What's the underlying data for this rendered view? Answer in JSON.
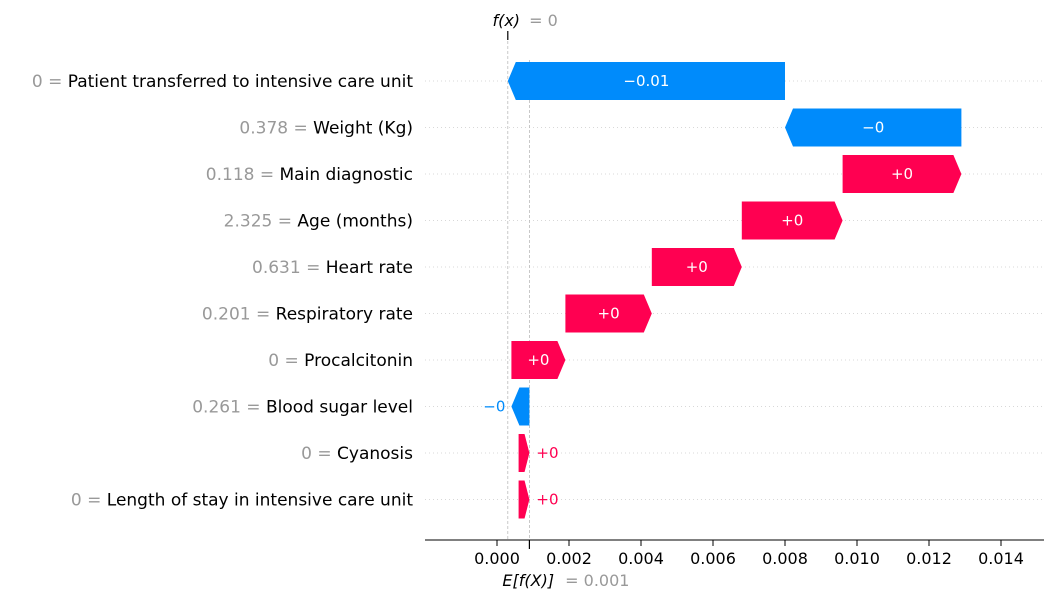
{
  "chart_data": {
    "type": "waterfall",
    "title": "",
    "xlabel": "",
    "ylabel": "",
    "fx_label": "f(x)",
    "fx_value": "= 0",
    "fx": 0.0003,
    "expected_label": "E[f(X)]",
    "expected_value": "= 0.001",
    "expected": 0.0009,
    "xlim": [
      -0.0021,
      0.0151
    ],
    "xticks": [
      0.0,
      0.002,
      0.004,
      0.006,
      0.008,
      0.01,
      0.012,
      0.014
    ],
    "xtick_labels": [
      "0.000",
      "0.002",
      "0.004",
      "0.006",
      "0.008",
      "0.010",
      "0.012",
      "0.014"
    ],
    "features": [
      {
        "value_text": "0",
        "name": "Patient transferred to intensive care unit",
        "start": 0.008,
        "end": 0.0003,
        "label": "−0.01",
        "sign": "neg"
      },
      {
        "value_text": "0.378",
        "name": "Weight (Kg)",
        "start": 0.0129,
        "end": 0.008,
        "label": "−0",
        "sign": "neg"
      },
      {
        "value_text": "0.118",
        "name": "Main diagnostic",
        "start": 0.0096,
        "end": 0.0129,
        "label": "+0",
        "sign": "pos"
      },
      {
        "value_text": "2.325",
        "name": "Age (months)",
        "start": 0.0068,
        "end": 0.0096,
        "label": "+0",
        "sign": "pos"
      },
      {
        "value_text": "0.631",
        "name": "Heart rate",
        "start": 0.0043,
        "end": 0.0068,
        "label": "+0",
        "sign": "pos"
      },
      {
        "value_text": "0.201",
        "name": "Respiratory rate",
        "start": 0.0019,
        "end": 0.0043,
        "label": "+0",
        "sign": "pos"
      },
      {
        "value_text": "0",
        "name": "Procalcitonin",
        "start": 0.0004,
        "end": 0.0019,
        "label": "+0",
        "sign": "pos"
      },
      {
        "value_text": "0.261",
        "name": "Blood sugar level",
        "start": 0.0009,
        "end": 0.0004,
        "label": "−0",
        "sign": "neg"
      },
      {
        "value_text": "0",
        "name": "Cyanosis",
        "start": 0.0006,
        "end": 0.0009,
        "label": "+0",
        "sign": "pos"
      },
      {
        "value_text": "0",
        "name": "Length of stay in intensive care unit",
        "start": 0.0006,
        "end": 0.0009,
        "label": "+0",
        "sign": "pos"
      }
    ],
    "colors": {
      "pos": "#ff0051",
      "neg": "#008bfb",
      "grid": "#cccccc",
      "muted": "#999999"
    }
  }
}
